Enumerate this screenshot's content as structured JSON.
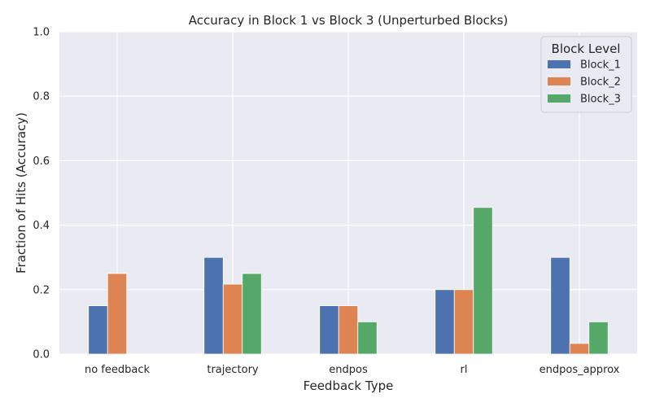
{
  "chart_data": {
    "type": "bar",
    "title": "Accuracy in Block 1 vs Block 3 (Unperturbed Blocks)",
    "xlabel": "Feedback Type",
    "ylabel": "Fraction of Hits (Accuracy)",
    "ylim": [
      0,
      1.0
    ],
    "yticks": [
      "0.0",
      "0.2",
      "0.4",
      "0.6",
      "0.8",
      "1.0"
    ],
    "categories": [
      "no feedback",
      "trajectory",
      "endpos",
      "rl",
      "endpos_approx"
    ],
    "series": [
      {
        "name": "Block_1",
        "color": "#4c72b0",
        "values": [
          0.15,
          0.3,
          0.15,
          0.2,
          0.3
        ]
      },
      {
        "name": "Block_2",
        "color": "#dd8452",
        "values": [
          0.25,
          0.217,
          0.15,
          0.2,
          0.033
        ]
      },
      {
        "name": "Block_3",
        "color": "#55a868",
        "values": [
          0.0,
          0.25,
          0.1,
          0.455,
          0.1
        ]
      }
    ],
    "legend": {
      "title": "Block Level",
      "position": "top-right"
    },
    "grid": true,
    "background": "#eaeaf2"
  }
}
